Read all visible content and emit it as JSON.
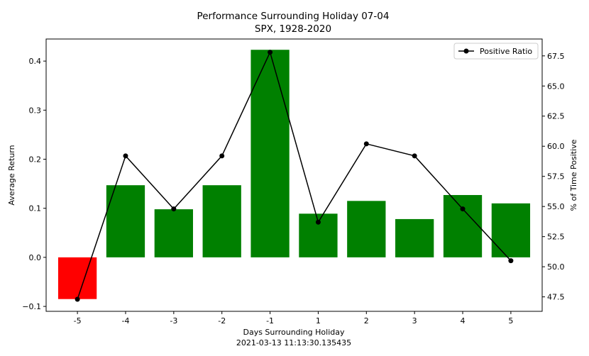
{
  "chart_data": {
    "type": "bar",
    "title": "Performance Surrounding Holiday 07-04",
    "subtitle": "SPX, 1928-2020",
    "xlabel": "Days Surrounding Holiday",
    "xlabel_sub": "2021-03-13 11:13:30.135435",
    "ylabel": "Average Return",
    "y2label": "% of Time Positive",
    "categories": [
      "-5",
      "-4",
      "-3",
      "-2",
      "-1",
      "1",
      "2",
      "3",
      "4",
      "5"
    ],
    "bars": {
      "values": [
        -0.085,
        0.147,
        0.098,
        0.147,
        0.423,
        0.089,
        0.115,
        0.078,
        0.127,
        0.11
      ],
      "positive_color": "#008000",
      "negative_color": "#ff0000"
    },
    "series": [
      {
        "name": "Positive Ratio",
        "axis": "right",
        "color": "#000000",
        "values": [
          47.3,
          59.2,
          54.8,
          59.2,
          67.8,
          53.7,
          60.2,
          59.2,
          54.8,
          50.5
        ]
      }
    ],
    "ylim": [
      -0.11,
      0.445
    ],
    "yticks": [
      -0.1,
      0.0,
      0.1,
      0.2,
      0.3,
      0.4
    ],
    "ytick_labels": [
      "−0.1",
      "0.0",
      "0.1",
      "0.2",
      "0.3",
      "0.4"
    ],
    "y2lim": [
      46.3,
      68.9
    ],
    "y2ticks": [
      47.5,
      50.0,
      52.5,
      55.0,
      57.5,
      60.0,
      62.5,
      65.0,
      67.5
    ],
    "y2tick_labels": [
      "47.5",
      "50.0",
      "52.5",
      "55.0",
      "57.5",
      "60.0",
      "62.5",
      "65.0",
      "67.5"
    ],
    "legend_position": "top-right",
    "grid": false
  }
}
